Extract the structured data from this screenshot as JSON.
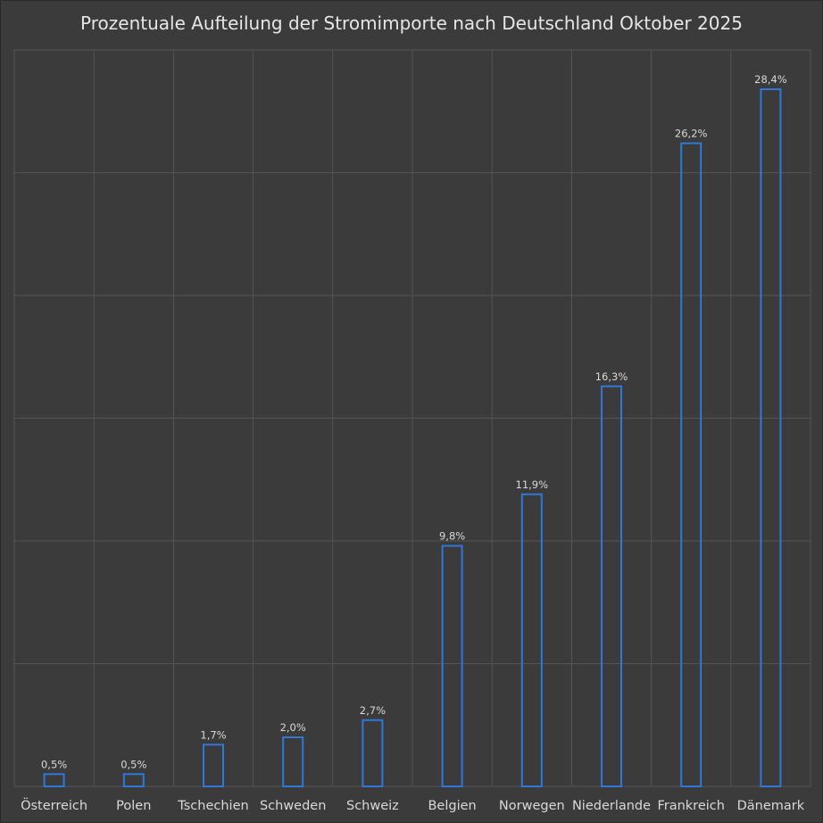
{
  "chart_data": {
    "type": "bar",
    "title": "Prozentuale Aufteilung der Stromimporte nach Deutschland Oktober 2025",
    "xlabel": "",
    "ylabel": "",
    "categories": [
      "Österreich",
      "Polen",
      "Tschechien",
      "Schweden",
      "Schweiz",
      "Belgien",
      "Norwegen",
      "Niederlande",
      "Frankreich",
      "Dänemark"
    ],
    "values": [
      0.5,
      0.5,
      1.7,
      2.0,
      2.7,
      9.8,
      11.9,
      16.3,
      26.2,
      28.4
    ],
    "data_labels": [
      "0,5%",
      "0,5%",
      "1,7%",
      "2,0%",
      "2,7%",
      "9,8%",
      "11,9%",
      "16,3%",
      "26,2%",
      "28,4%"
    ],
    "ylim": [
      0,
      30
    ],
    "grid": true,
    "legend": "none",
    "colors": {
      "background": "#3b3b3b",
      "grid": "#555555",
      "bar_outline": "#2f78d8",
      "text": "#d9d9d9"
    }
  }
}
